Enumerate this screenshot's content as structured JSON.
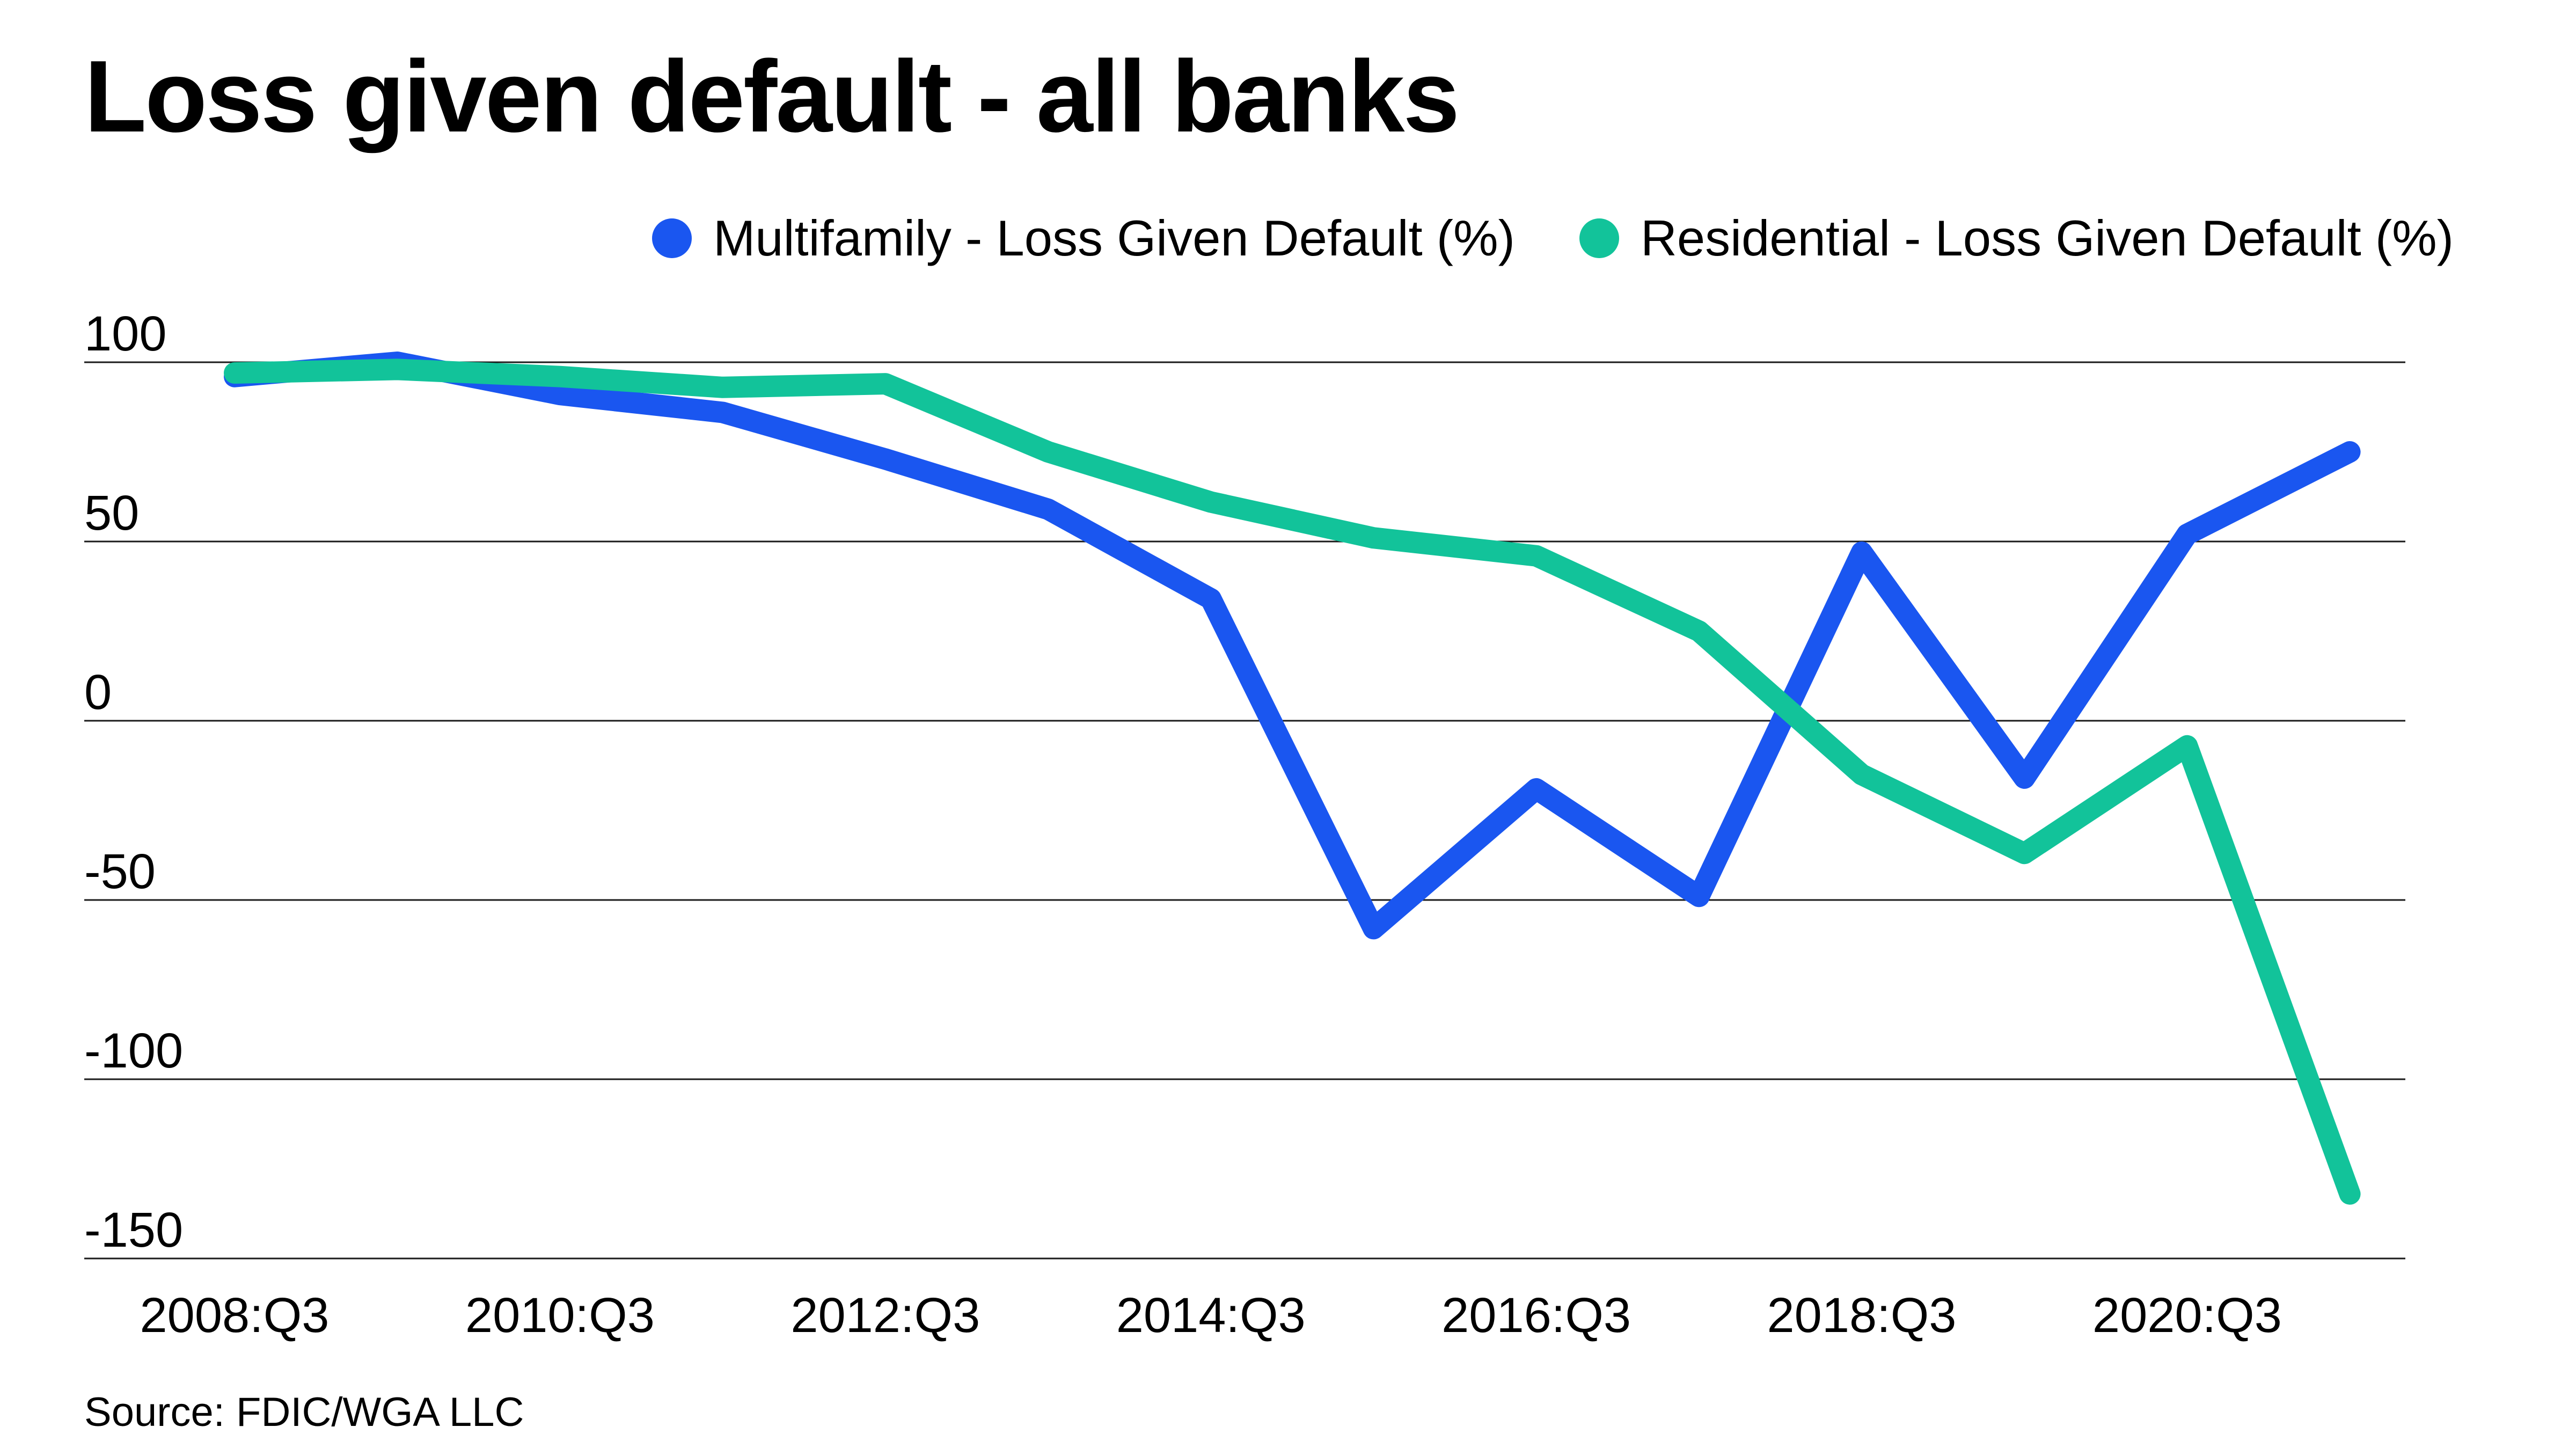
{
  "title": "Loss given default - all banks",
  "source": "Source: FDIC/WGA LLC",
  "chart_data": {
    "type": "line",
    "title": "Loss given default - all banks",
    "x": [
      "2008:Q3",
      "2009:Q3",
      "2010:Q3",
      "2011:Q3",
      "2012:Q3",
      "2013:Q3",
      "2014:Q3",
      "2015:Q3",
      "2016:Q3",
      "2017:Q3",
      "2018:Q3",
      "2019:Q3",
      "2020:Q3",
      "2021:Q3"
    ],
    "x_tick_labels": [
      "2008:Q3",
      "2010:Q3",
      "2012:Q3",
      "2014:Q3",
      "2016:Q3",
      "2018:Q3",
      "2020:Q3"
    ],
    "y_ticks": [
      100,
      50,
      0,
      -50,
      -100,
      -150
    ],
    "ylim": [
      -150,
      100
    ],
    "grid": true,
    "legend": "top-right",
    "series": [
      {
        "name": "Multifamily - Loss Given Default (%)",
        "color": "#1a56f0",
        "values": [
          96,
          100,
          91,
          86,
          73,
          59,
          34,
          -58,
          -19,
          -49,
          47,
          -16,
          52,
          75
        ]
      },
      {
        "name": "Residential - Loss Given Default (%)",
        "color": "#12c39a",
        "values": [
          97,
          98,
          96,
          93,
          94,
          75,
          61,
          51,
          46,
          25,
          -15,
          -37,
          -7,
          -132
        ]
      }
    ]
  }
}
